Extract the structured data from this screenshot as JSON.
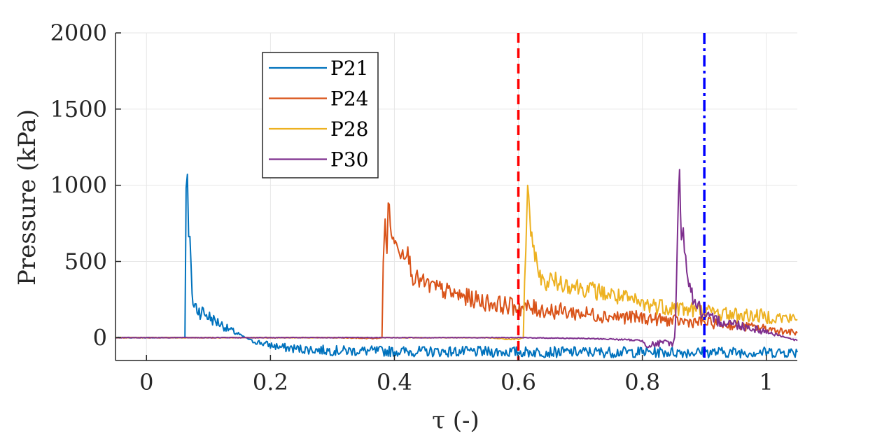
{
  "chart_data": {
    "type": "line",
    "xlabel": "τ (-)",
    "ylabel": "Pressure (kPa)",
    "xlim": [
      -0.05,
      1.05
    ],
    "ylim": [
      -150,
      2000
    ],
    "xticks": [
      0,
      0.2,
      0.4,
      0.6,
      0.8,
      1
    ],
    "xtick_labels": [
      "0",
      "0.2",
      "0.4",
      "0.6",
      "0.8",
      "1"
    ],
    "yticks": [
      0,
      500,
      1000,
      1500,
      2000
    ],
    "ytick_labels": [
      "0",
      "500",
      "1000",
      "1500",
      "2000"
    ],
    "grid": true,
    "legend_position": "top-left inside",
    "series": [
      {
        "name": "P21",
        "color": "#0072BD",
        "x": [
          -0.05,
          0.06,
          0.062,
          0.064,
          0.066,
          0.068,
          0.07,
          0.072,
          0.075,
          0.08,
          0.085,
          0.09,
          0.1,
          0.11,
          0.12,
          0.13,
          0.14,
          0.15,
          0.16,
          0.17,
          0.18,
          0.19,
          0.2,
          0.22,
          0.25,
          0.3,
          0.4,
          0.5,
          0.6,
          0.7,
          0.8,
          0.9,
          1.0,
          1.05
        ],
        "y": [
          0,
          0,
          0,
          1030,
          1030,
          650,
          650,
          420,
          220,
          200,
          180,
          170,
          140,
          110,
          90,
          60,
          40,
          20,
          0,
          -20,
          -30,
          -40,
          -50,
          -65,
          -75,
          -85,
          -90,
          -92,
          -94,
          -95,
          -95,
          -96,
          -96,
          -96
        ]
      },
      {
        "name": "P24",
        "color": "#D95319",
        "x": [
          -0.05,
          0.3,
          0.37,
          0.38,
          0.382,
          0.385,
          0.388,
          0.39,
          0.395,
          0.4,
          0.405,
          0.41,
          0.42,
          0.43,
          0.45,
          0.5,
          0.55,
          0.6,
          0.65,
          0.7,
          0.75,
          0.8,
          0.85,
          0.9,
          0.95,
          1.0,
          1.05
        ],
        "y": [
          0,
          0,
          -5,
          0,
          500,
          750,
          600,
          880,
          700,
          600,
          640,
          560,
          580,
          400,
          350,
          280,
          230,
          200,
          180,
          160,
          140,
          130,
          110,
          100,
          80,
          60,
          30
        ]
      },
      {
        "name": "P28",
        "color": "#EDB120",
        "x": [
          -0.05,
          0.55,
          0.58,
          0.6,
          0.605,
          0.608,
          0.61,
          0.612,
          0.615,
          0.618,
          0.62,
          0.625,
          0.63,
          0.64,
          0.65,
          0.7,
          0.75,
          0.8,
          0.85,
          0.9,
          0.95,
          1.0,
          1.05
        ],
        "y": [
          0,
          0,
          -10,
          -10,
          -5,
          0,
          350,
          600,
          1010,
          780,
          650,
          600,
          480,
          350,
          380,
          330,
          280,
          220,
          200,
          170,
          150,
          140,
          120
        ]
      },
      {
        "name": "P30",
        "color": "#7E2F8E",
        "x": [
          -0.05,
          0.6,
          0.7,
          0.75,
          0.78,
          0.8,
          0.81,
          0.82,
          0.84,
          0.85,
          0.852,
          0.855,
          0.857,
          0.86,
          0.863,
          0.866,
          0.87,
          0.875,
          0.88,
          0.89,
          0.9,
          0.95,
          1.0,
          1.05
        ],
        "y": [
          0,
          0,
          -5,
          -10,
          -15,
          -20,
          -50,
          -45,
          -30,
          -40,
          0,
          300,
          700,
          1150,
          600,
          720,
          500,
          380,
          280,
          200,
          130,
          90,
          40,
          -20
        ]
      }
    ],
    "annotations": [
      {
        "type": "vline",
        "x": 0.6,
        "color": "#FF0000",
        "style": "dashed"
      },
      {
        "type": "vline",
        "x": 0.9,
        "color": "#0000FF",
        "style": "dash-dot"
      }
    ]
  }
}
